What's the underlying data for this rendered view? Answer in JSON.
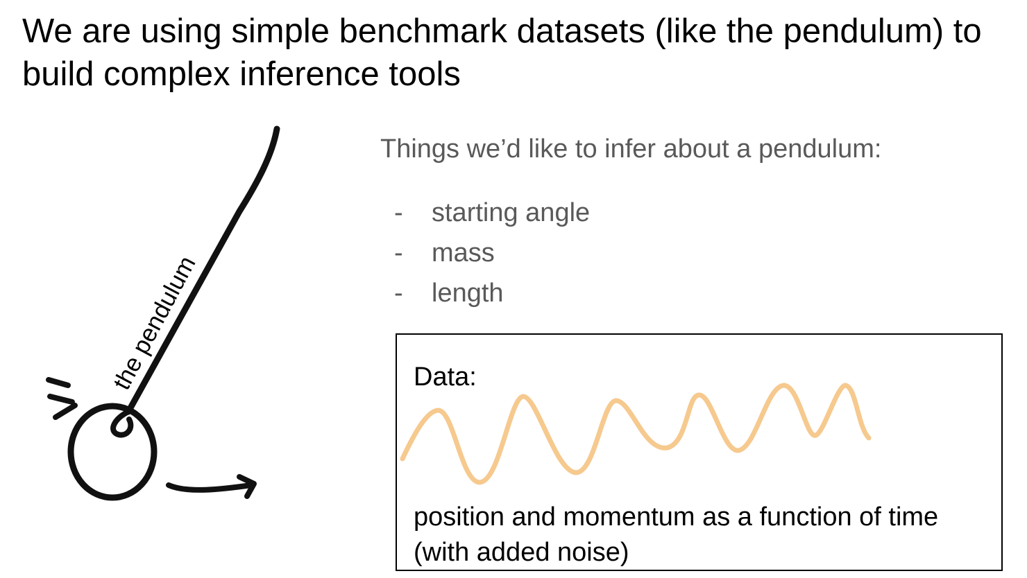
{
  "slide": {
    "title": "We are using simple benchmark datasets (like the pendulum) to build complex inference tools"
  },
  "pendulum_sketch": {
    "label": "the pendulum"
  },
  "infer": {
    "heading": "Things we’d like to infer about a pendulum:",
    "items": [
      {
        "bullet": "-",
        "text": "starting angle"
      },
      {
        "bullet": "-",
        "text": "mass"
      },
      {
        "bullet": "-",
        "text": "length"
      }
    ]
  },
  "data_box": {
    "label": "Data:",
    "caption": "position and momentum as a function of time (with added noise)",
    "wave_color": "#f4c07a"
  }
}
